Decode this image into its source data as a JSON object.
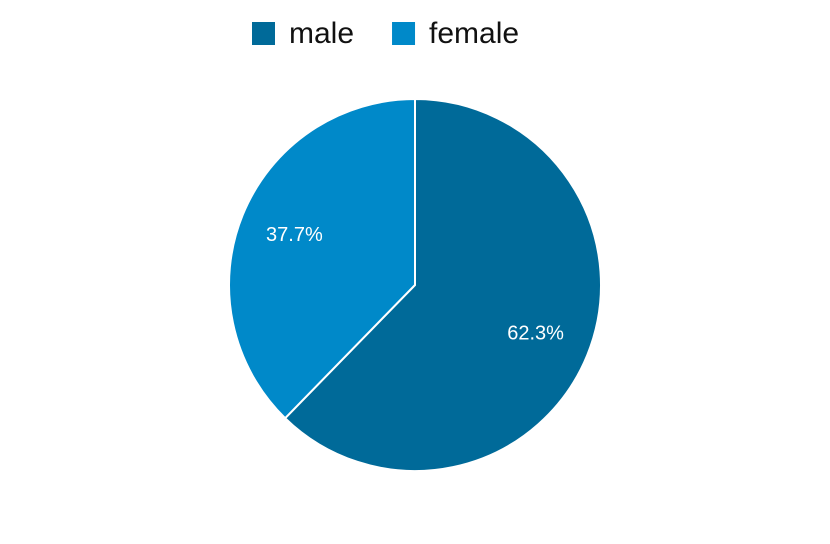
{
  "chart_data": {
    "type": "pie",
    "categories": [
      "male",
      "female"
    ],
    "values": [
      62.3,
      37.7
    ],
    "value_labels": [
      "62.3%",
      "37.7%"
    ],
    "colors": [
      "#006a99",
      "#0089c9"
    ]
  }
}
